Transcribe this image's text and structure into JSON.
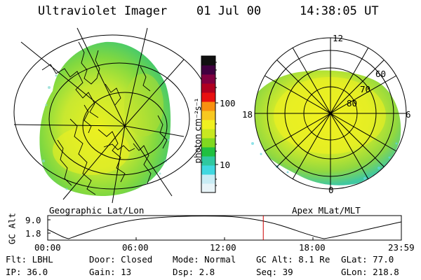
{
  "header": {
    "title": "Ultraviolet Imager",
    "date": "01 Jul 00",
    "time": "14:38:05 UT"
  },
  "colorbar": {
    "unit_label": "photon cm⁻²s⁻¹",
    "ticks": [
      "100",
      "10"
    ],
    "scale": "log",
    "colors": [
      "#e8f4f8",
      "#c8ecf4",
      "#40d8e0",
      "#30c8a0",
      "#20c040",
      "#80d820",
      "#c8e820",
      "#f0f020",
      "#f8c820",
      "#f89010",
      "#e81010",
      "#b00020",
      "#800040",
      "#400040",
      "#101010"
    ]
  },
  "left_map": {
    "caption": "Geographic Lat/Lon"
  },
  "right_map": {
    "caption": "Apex MLat/MLT",
    "mlt_labels": {
      "top": "12",
      "left": "18",
      "right": "6",
      "bottom": "0"
    },
    "lat_labels": [
      "60",
      "70",
      "80"
    ]
  },
  "altitude_plot": {
    "ylabel": "GC Alt",
    "y_ticks": [
      "9.0",
      "1.8"
    ],
    "x_ticks": [
      "00:00",
      "06:00",
      "12:00",
      "18:00",
      "23:59"
    ],
    "current_marker_hours": 14.63,
    "marker_color": "#cc0000"
  },
  "info": {
    "flt": "Flt: LBHL",
    "ip": "IP: 36.0",
    "door": "Door: Closed",
    "gain": "Gain: 13",
    "mode": "Mode: Normal",
    "dsp": "Dsp:     2.8",
    "gc_alt": "GC Alt: 8.1 Re",
    "seq": "Seq: 39",
    "glat": "GLat:  77.0",
    "glon": "GLon: 218.8"
  }
}
